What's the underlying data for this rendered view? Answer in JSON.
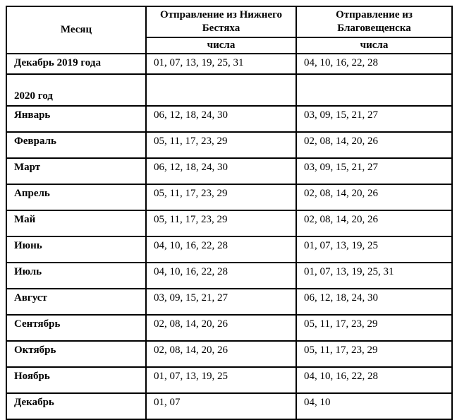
{
  "header": {
    "month_label": "Месяц",
    "bestyakh_title": "Отправление из Нижнего Бестяха",
    "bestyakh_sub": "числа",
    "blagoveshchensk_title": "Отправление из Благовещенска",
    "blagoveshchensk_sub": "числа"
  },
  "december_2019": {
    "month": "Декабрь 2019 года",
    "bestyakh": "01, 07, 13, 19, 25, 31",
    "blagoveshchensk": "04, 10, 16, 22, 28"
  },
  "section_2020": "2020 год",
  "months_2020": [
    {
      "month": "Январь",
      "bestyakh": "06, 12, 18, 24, 30",
      "blagoveshchensk": "03, 09, 15, 21, 27"
    },
    {
      "month": "Февраль",
      "bestyakh": "05, 11, 17, 23, 29",
      "blagoveshchensk": "02, 08, 14, 20, 26"
    },
    {
      "month": "Март",
      "bestyakh": "06, 12, 18, 24, 30",
      "blagoveshchensk": "03, 09, 15, 21, 27"
    },
    {
      "month": "Апрель",
      "bestyakh": "05, 11, 17, 23, 29",
      "blagoveshchensk": "02, 08, 14, 20, 26"
    },
    {
      "month": "Май",
      "bestyakh": "05, 11, 17, 23, 29",
      "blagoveshchensk": "02, 08, 14, 20, 26"
    },
    {
      "month": "Июнь",
      "bestyakh": "04, 10, 16, 22, 28",
      "blagoveshchensk": "01, 07, 13, 19, 25"
    },
    {
      "month": "Июль",
      "bestyakh": "04, 10, 16, 22, 28",
      "blagoveshchensk": "01, 07, 13, 19, 25, 31"
    },
    {
      "month": "Август",
      "bestyakh": "03, 09, 15, 21, 27",
      "blagoveshchensk": "06, 12, 18, 24, 30"
    },
    {
      "month": "Сентябрь",
      "bestyakh": "02, 08, 14, 20, 26",
      "blagoveshchensk": "05, 11, 17, 23, 29"
    },
    {
      "month": "Октябрь",
      "bestyakh": "02, 08, 14, 20, 26",
      "blagoveshchensk": "05, 11, 17, 23, 29"
    },
    {
      "month": "Ноябрь",
      "bestyakh": "01, 07, 13, 19, 25",
      "blagoveshchensk": "04, 10, 16, 22, 28"
    },
    {
      "month": "Декабрь",
      "bestyakh": "01, 07",
      "blagoveshchensk": "04, 10"
    }
  ],
  "colors": {
    "border": "#000000",
    "text": "#000000",
    "background": "#ffffff"
  }
}
